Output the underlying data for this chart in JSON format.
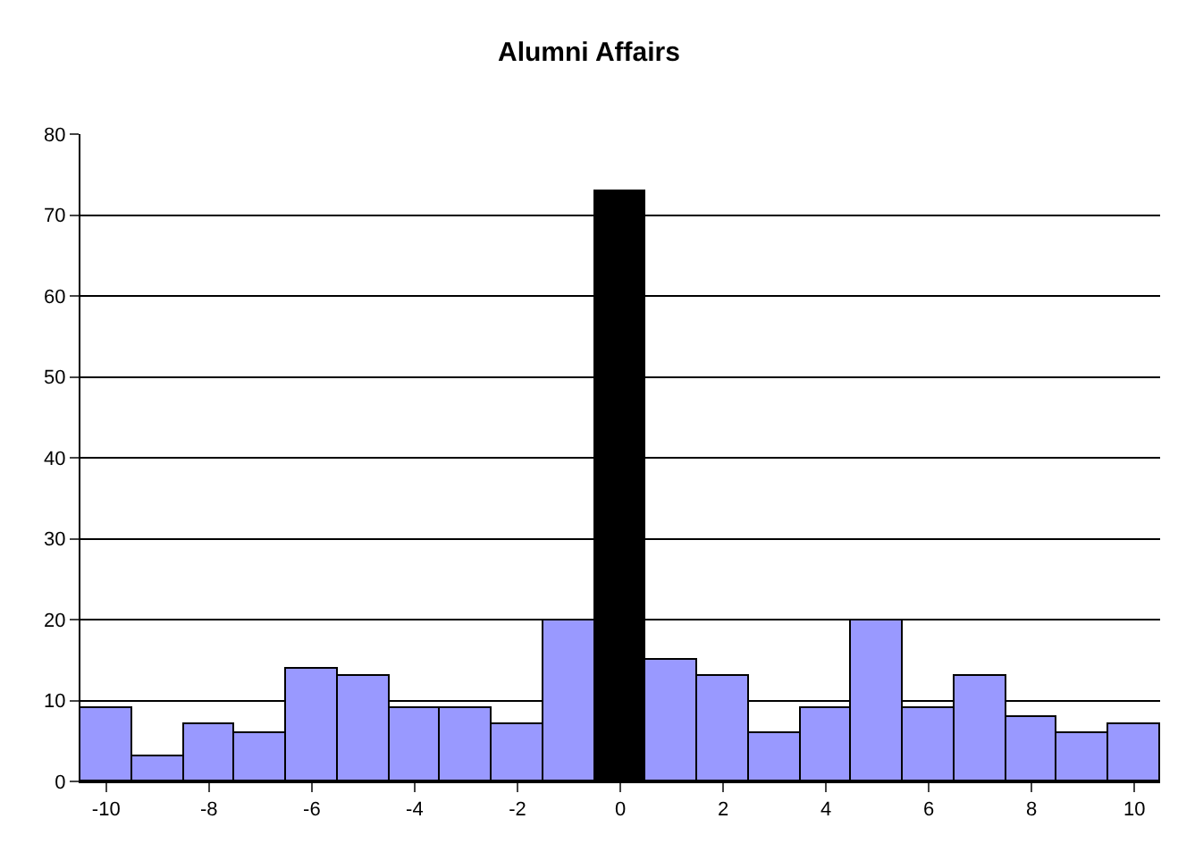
{
  "chart_data": {
    "type": "bar",
    "title": "Alumni Affairs",
    "categories": [
      "-10",
      null,
      "-8",
      null,
      "-6",
      null,
      "-4",
      null,
      "-2",
      null,
      "0",
      null,
      "2",
      null,
      "4",
      null,
      "6",
      null,
      "8",
      null,
      "10"
    ],
    "values": [
      9,
      3,
      7,
      6,
      14,
      13,
      9,
      9,
      7,
      20,
      73,
      15,
      13,
      6,
      9,
      20,
      9,
      13,
      8,
      6,
      7
    ],
    "colors": [
      "#9999ff",
      "#9999ff",
      "#9999ff",
      "#9999ff",
      "#9999ff",
      "#9999ff",
      "#9999ff",
      "#9999ff",
      "#9999ff",
      "#9999ff",
      "#000000",
      "#9999ff",
      "#9999ff",
      "#9999ff",
      "#9999ff",
      "#9999ff",
      "#9999ff",
      "#9999ff",
      "#9999ff",
      "#9999ff",
      "#9999ff"
    ],
    "ylim": [
      0,
      80
    ],
    "yticks": [
      0,
      10,
      20,
      30,
      40,
      50,
      60,
      70,
      80
    ],
    "grid": "y"
  }
}
